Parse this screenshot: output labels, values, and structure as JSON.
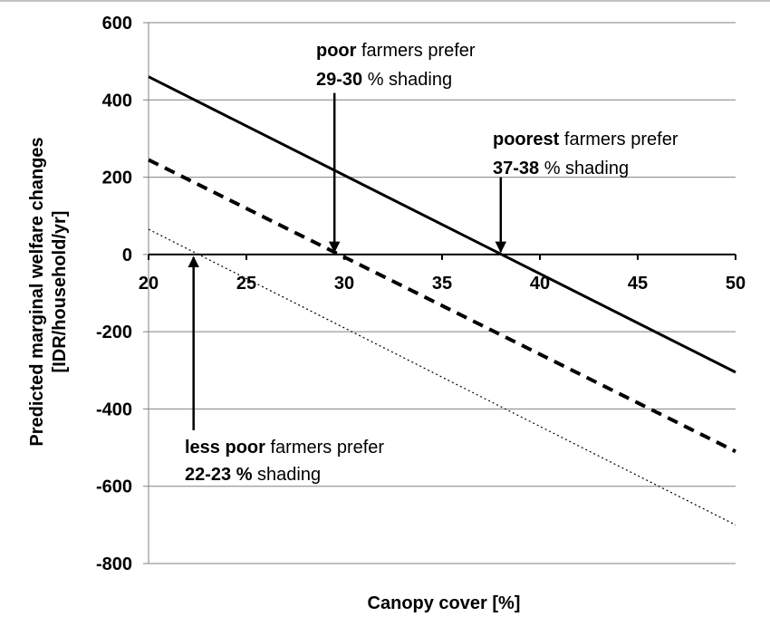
{
  "chart_data": {
    "type": "line",
    "xlabel": "Canopy cover [%]",
    "ylabel_line1": "Predicted marginal welfare changes",
    "ylabel_line2": "[IDR/household/yr]",
    "xlim": [
      20,
      50
    ],
    "ylim": [
      -800,
      600
    ],
    "xticks": [
      20,
      25,
      30,
      35,
      40,
      45,
      50
    ],
    "yticks": [
      600,
      400,
      200,
      0,
      -200,
      -400,
      -600,
      -800
    ],
    "grid": "horizontal",
    "series": [
      {
        "style": "solid",
        "x": [
          20,
          50
        ],
        "y": [
          460,
          -305
        ]
      },
      {
        "style": "dashed",
        "x": [
          20,
          50
        ],
        "y": [
          245,
          -510
        ]
      },
      {
        "style": "dotted",
        "x": [
          20,
          50
        ],
        "y": [
          65,
          -700
        ]
      }
    ],
    "annotations": [
      {
        "bold": "poor",
        "rest": " farmers prefer",
        "bold2": "29-30",
        "rest2": " % shading",
        "arrow_x": 29.5,
        "arrow_from_y": 418,
        "arrow_to_y": 0
      },
      {
        "bold": "poorest",
        "rest": " farmers prefer",
        "bold2": "37-38",
        "rest2": " % shading",
        "arrow_x": 38.0,
        "arrow_from_y": 200,
        "arrow_to_y": 0
      },
      {
        "bold": "less poor",
        "rest": " farmers prefer",
        "bold2": "22-23 %",
        "rest2": " shading",
        "arrow_x": 22.3,
        "arrow_from_y": -455,
        "arrow_to_y": 0
      }
    ]
  }
}
